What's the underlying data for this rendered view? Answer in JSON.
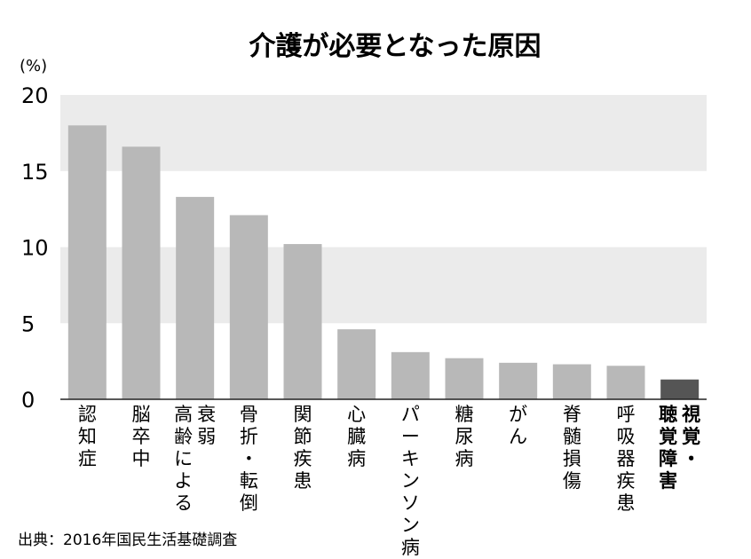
{
  "chart_data": {
    "type": "bar",
    "title": "介護が必要となった原因",
    "unit_label": "(%)",
    "categories": [
      "認知症",
      "脳卒中",
      "高齢による衰弱",
      "骨折・転倒",
      "関節疾患",
      "心臓病",
      "パーキンソン病",
      "糖尿病",
      "がん",
      "脊髄損傷",
      "呼吸器疾患",
      "視覚・聴覚障害"
    ],
    "category_lines": [
      [
        "認知症"
      ],
      [
        "脳卒中"
      ],
      [
        "衰弱",
        "高齢による"
      ],
      [
        "骨折・転倒"
      ],
      [
        "関節疾患"
      ],
      [
        "心臓病"
      ],
      [
        "パーキンソン病"
      ],
      [
        "糖尿病"
      ],
      [
        "がん"
      ],
      [
        "脊髄損傷"
      ],
      [
        "呼吸器疾患"
      ],
      [
        "視覚・",
        "聴覚障害"
      ]
    ],
    "values": [
      18.0,
      16.6,
      13.3,
      12.1,
      10.2,
      4.6,
      3.1,
      2.7,
      2.4,
      2.3,
      2.2,
      1.3
    ],
    "highlight_index": 11,
    "ylim": [
      0,
      20
    ],
    "yticks": [
      0,
      5,
      10,
      15,
      20
    ],
    "grid": "alternating-bands",
    "colors": {
      "bar": "#b8b8b8",
      "highlight_bar": "#555555",
      "band": "#ebebeb",
      "text": "#111111"
    }
  },
  "source_note": "出典：2016年国民生活基礎調査"
}
